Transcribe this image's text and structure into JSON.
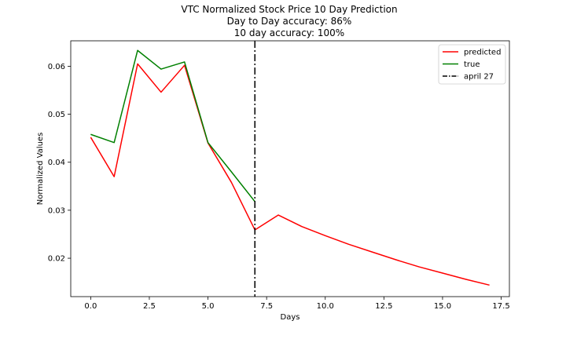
{
  "chart_data": {
    "type": "line",
    "title_lines": [
      "VTC Normalized Stock Price 10 Day Prediction",
      "Day to Day accuracy: 86%",
      "10 day accuracy: 100%"
    ],
    "xlabel": "Days",
    "ylabel": "Normalized Values",
    "xlim": [
      -0.85,
      17.85
    ],
    "ylim": [
      0.012,
      0.0653
    ],
    "x_ticks": [
      0.0,
      2.5,
      5.0,
      7.5,
      10.0,
      12.5,
      15.0,
      17.5
    ],
    "x_tick_labels": [
      "0.0",
      "2.5",
      "5.0",
      "7.5",
      "10.0",
      "12.5",
      "15.0",
      "17.5"
    ],
    "y_ticks": [
      0.02,
      0.03,
      0.04,
      0.05,
      0.06
    ],
    "y_tick_labels": [
      "0.02",
      "0.03",
      "0.04",
      "0.05",
      "0.06"
    ],
    "grid": false,
    "legend_position": "top-right",
    "series": [
      {
        "name": "predicted",
        "color": "#ff0000",
        "style": "solid",
        "x": [
          0,
          1,
          2,
          3,
          4,
          5,
          6,
          7,
          8,
          9,
          10,
          11,
          12,
          13,
          14,
          15,
          16,
          17
        ],
        "y": [
          0.0452,
          0.037,
          0.0605,
          0.0546,
          0.0602,
          0.044,
          0.0358,
          0.0259,
          0.029,
          0.0266,
          0.0247,
          0.0229,
          0.0213,
          0.0197,
          0.0182,
          0.0169,
          0.0156,
          0.0144
        ]
      },
      {
        "name": "true",
        "color": "#008000",
        "style": "solid",
        "x": [
          0,
          1,
          2,
          3,
          4,
          5,
          6,
          7
        ],
        "y": [
          0.0458,
          0.0441,
          0.0633,
          0.0594,
          0.0609,
          0.0441,
          0.038,
          0.0318
        ]
      }
    ],
    "vline": {
      "name": "april 27",
      "x": 7,
      "color": "#000000",
      "style": "dashdot"
    }
  }
}
